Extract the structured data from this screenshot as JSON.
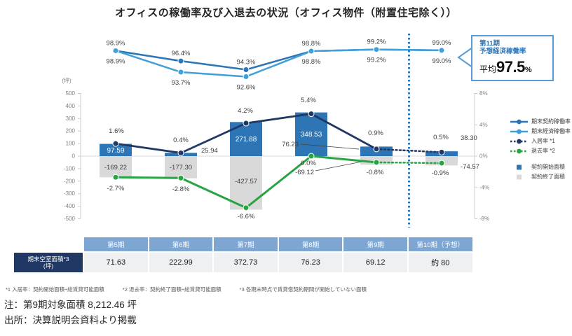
{
  "title": "オフィスの稼働率及び入退去の状況（オフィス物件（附置住宅除く））",
  "callout": {
    "period": "第11期",
    "label": "予想経済稼働率",
    "prefix": "平均",
    "value": "97.5",
    "unit": "%"
  },
  "legend": {
    "position": "right",
    "items": [
      {
        "label": "期末契約稼働率",
        "marker": "line",
        "color": "#2E75B6"
      },
      {
        "label": "期末経済稼働率",
        "marker": "line",
        "color": "#41A0D9"
      },
      {
        "label": "入居率 *1",
        "marker": "dashed",
        "color": "#1F3864"
      },
      {
        "label": "退去率 *2",
        "marker": "dashed",
        "color": "#27A443"
      },
      {
        "label": "契約開始面積",
        "marker": "square",
        "color": "#2E75B6"
      },
      {
        "label": "契約終了面積",
        "marker": "square",
        "color": "#D9D9D9"
      }
    ]
  },
  "chart_data": [
    {
      "type": "line",
      "title": "オフィス稼働率",
      "categories": [
        "第5期",
        "第6期",
        "第7期",
        "第8期",
        "第9期",
        "第10期（予想）"
      ],
      "series": [
        {
          "name": "期末契約稼働率",
          "color": "#2E75B6",
          "values": [
            98.9,
            96.4,
            94.3,
            98.8,
            99.2,
            99.0
          ],
          "labels": [
            "98.9%",
            "96.4%",
            "94.3%",
            "98.8%",
            "99.2%",
            "99.0%"
          ],
          "label_side": "above"
        },
        {
          "name": "期末経済稼働率",
          "color": "#41A0D9",
          "values": [
            98.9,
            93.7,
            92.6,
            98.8,
            99.2,
            99.0
          ],
          "labels": [
            "98.9%",
            "93.7%",
            "92.6%",
            "98.8%",
            "99.2%",
            "99.0%"
          ],
          "label_side": "below"
        }
      ],
      "unit": "%",
      "ylim": [
        92,
        100
      ],
      "grid": false,
      "forecast_separator_after_index": 4
    },
    {
      "type": "combo",
      "categories": [
        "第5期",
        "第6期",
        "第7期",
        "第8期",
        "第9期",
        "第10期（予想）"
      ],
      "bars": [
        {
          "name": "契約開始面積",
          "color": "#2E75B6",
          "values": [
            97.59,
            25.94,
            271.88,
            348.53,
            76.23,
            38.3
          ],
          "labels": [
            "97.59",
            "25.94",
            "271.88",
            "348.53",
            "76.23",
            "38.30"
          ]
        },
        {
          "name": "契約終了面積",
          "color": "#D9D9D9",
          "values": [
            -169.22,
            -177.3,
            -427.57,
            0,
            -69.12,
            -74.57
          ],
          "labels": [
            "-169.22",
            "-177.30",
            "-427.57",
            null,
            "-69.12",
            "-74.57"
          ]
        }
      ],
      "lines": [
        {
          "name": "入居率",
          "color": "#1F3864",
          "values": [
            1.6,
            0.4,
            4.2,
            5.4,
            0.9,
            0.5
          ],
          "labels": [
            "1.6%",
            "0.4%",
            "4.2%",
            "5.4%",
            "0.9%",
            "0.5%"
          ]
        },
        {
          "name": "退去率",
          "color": "#27A443",
          "values": [
            -2.7,
            -2.8,
            -6.6,
            0.0,
            -0.8,
            -0.9
          ],
          "labels": [
            "-2.7%",
            "-2.8%",
            "-6.6%",
            "0.0%",
            "-0.8%",
            "-0.9%"
          ]
        }
      ],
      "left_axis": {
        "unit": "(坪)",
        "min": -500,
        "max": 500,
        "ticks": [
          500,
          400,
          300,
          200,
          100,
          0,
          -100,
          -200,
          -300,
          -400,
          -500
        ]
      },
      "right_axis": {
        "min": -8,
        "max": 8,
        "ticks": [
          "8%",
          "4%",
          "0%",
          "-4%",
          "-8%"
        ],
        "tick_values": [
          8,
          4,
          0,
          -4,
          -8
        ]
      },
      "grid": false,
      "forecast_separator_after_index": 4
    }
  ],
  "table": {
    "row_header": "期末空室面積*3",
    "row_header_sub": "(坪)",
    "columns": [
      "第5期",
      "第6期",
      "第7期",
      "第8期",
      "第9期",
      "第10期（予想）"
    ],
    "values": [
      "71.63",
      "222.99",
      "372.73",
      "76.23",
      "69.12",
      "約 80"
    ]
  },
  "footnotes": [
    "*1 入居率：契約開始面積÷総賃貸可能面積",
    "*2 退去率：契約終了面積÷総賃貸可能面積",
    "*3 各期末時点で賃貸借契約期間が開始していない面積"
  ],
  "note": "注：第9期対象面積 8,212.46 坪",
  "source": "出所：決算説明会資料より掲載",
  "colors": {
    "separator": "#2E75B6",
    "axis_text": "#7F7F7F",
    "data_label": "#404040",
    "table_header_bg": "#7EA6D3",
    "table_row_header_bg": "#1F3864",
    "table_value_bg": "#EEF0F2",
    "callout_border": "#5B9BD5",
    "callout_text": "#2E75B6"
  }
}
